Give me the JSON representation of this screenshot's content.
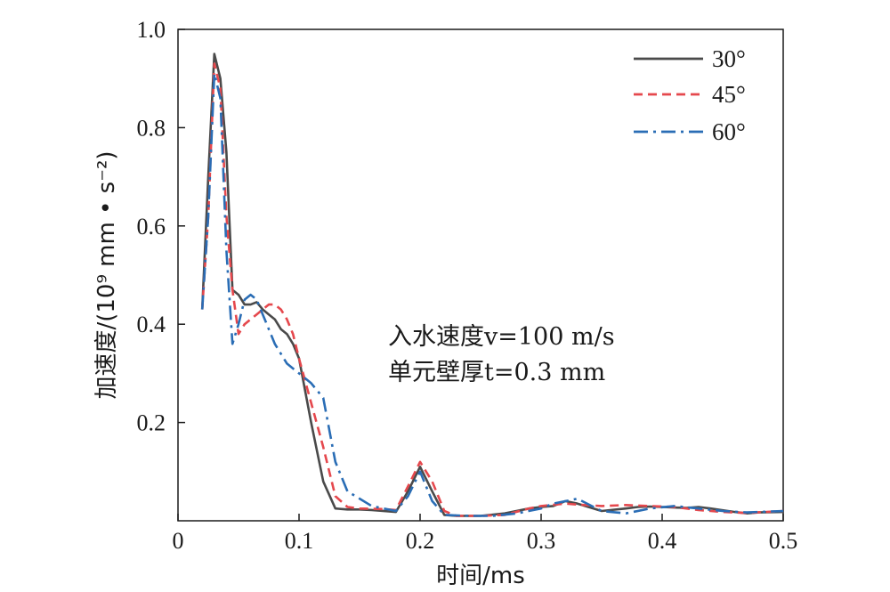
{
  "chart_data": {
    "type": "line",
    "xlabel": "时间/ms",
    "ylabel": "加速度/(10⁹ mm • s⁻²)",
    "xlim": [
      0,
      0.5
    ],
    "ylim": [
      0,
      1.0
    ],
    "x_ticks": [
      "0",
      "0.1",
      "0.2",
      "0.3",
      "0.4",
      "0.5"
    ],
    "y_ticks": [
      "0.2",
      "0.4",
      "0.6",
      "0.8",
      "1.0"
    ],
    "x_tick_values": [
      0,
      0.1,
      0.2,
      0.3,
      0.4,
      0.5
    ],
    "y_tick_values": [
      0.2,
      0.4,
      0.6,
      0.8,
      1.0
    ],
    "legend_position": "top-right",
    "annotations": [
      "入水速度v=100 m/s",
      "单元壁厚t=0.3 mm"
    ],
    "series": [
      {
        "name": "30°",
        "color": "#4a4a4a",
        "dash": "solid",
        "x": [
          0.02,
          0.025,
          0.03,
          0.035,
          0.04,
          0.045,
          0.05,
          0.055,
          0.06,
          0.065,
          0.07,
          0.075,
          0.08,
          0.085,
          0.09,
          0.095,
          0.1,
          0.11,
          0.12,
          0.13,
          0.14,
          0.15,
          0.16,
          0.18,
          0.19,
          0.2,
          0.21,
          0.22,
          0.23,
          0.25,
          0.27,
          0.29,
          0.3,
          0.31,
          0.32,
          0.33,
          0.35,
          0.37,
          0.38,
          0.39,
          0.4,
          0.42,
          0.43,
          0.44,
          0.46,
          0.47,
          0.48,
          0.5
        ],
        "y": [
          0.43,
          0.7,
          0.95,
          0.9,
          0.75,
          0.47,
          0.46,
          0.44,
          0.44,
          0.445,
          0.43,
          0.42,
          0.41,
          0.39,
          0.38,
          0.36,
          0.33,
          0.2,
          0.08,
          0.025,
          0.023,
          0.023,
          0.022,
          0.018,
          0.06,
          0.11,
          0.06,
          0.012,
          0.01,
          0.01,
          0.015,
          0.025,
          0.028,
          0.03,
          0.04,
          0.035,
          0.02,
          0.025,
          0.028,
          0.029,
          0.028,
          0.026,
          0.028,
          0.025,
          0.018,
          0.015,
          0.017,
          0.018
        ]
      },
      {
        "name": "45°",
        "color": "#e5484d",
        "dash": "dashed",
        "x": [
          0.02,
          0.025,
          0.03,
          0.035,
          0.04,
          0.045,
          0.05,
          0.055,
          0.06,
          0.065,
          0.07,
          0.075,
          0.08,
          0.085,
          0.09,
          0.095,
          0.1,
          0.11,
          0.12,
          0.13,
          0.14,
          0.15,
          0.17,
          0.18,
          0.19,
          0.2,
          0.21,
          0.22,
          0.23,
          0.25,
          0.27,
          0.29,
          0.3,
          0.32,
          0.33,
          0.35,
          0.37,
          0.39,
          0.41,
          0.43,
          0.45,
          0.47,
          0.5
        ],
        "y": [
          0.43,
          0.62,
          0.93,
          0.88,
          0.62,
          0.47,
          0.38,
          0.4,
          0.41,
          0.42,
          0.43,
          0.44,
          0.44,
          0.43,
          0.41,
          0.38,
          0.33,
          0.24,
          0.15,
          0.05,
          0.028,
          0.025,
          0.024,
          0.022,
          0.07,
          0.12,
          0.08,
          0.02,
          0.01,
          0.01,
          0.012,
          0.025,
          0.03,
          0.035,
          0.033,
          0.03,
          0.032,
          0.03,
          0.028,
          0.022,
          0.018,
          0.016,
          0.02
        ]
      },
      {
        "name": "60°",
        "color": "#2a6db5",
        "dash": "dashdot",
        "x": [
          0.02,
          0.025,
          0.03,
          0.035,
          0.04,
          0.045,
          0.05,
          0.055,
          0.06,
          0.065,
          0.07,
          0.075,
          0.08,
          0.09,
          0.1,
          0.11,
          0.12,
          0.13,
          0.14,
          0.16,
          0.18,
          0.19,
          0.2,
          0.21,
          0.22,
          0.24,
          0.26,
          0.28,
          0.3,
          0.31,
          0.33,
          0.35,
          0.37,
          0.39,
          0.41,
          0.43,
          0.45,
          0.47,
          0.5
        ],
        "y": [
          0.43,
          0.62,
          0.91,
          0.86,
          0.55,
          0.36,
          0.4,
          0.45,
          0.46,
          0.45,
          0.42,
          0.39,
          0.36,
          0.32,
          0.3,
          0.28,
          0.25,
          0.12,
          0.06,
          0.03,
          0.02,
          0.05,
          0.1,
          0.04,
          0.012,
          0.01,
          0.01,
          0.015,
          0.025,
          0.035,
          0.045,
          0.02,
          0.015,
          0.025,
          0.03,
          0.025,
          0.02,
          0.017,
          0.02
        ]
      }
    ]
  }
}
